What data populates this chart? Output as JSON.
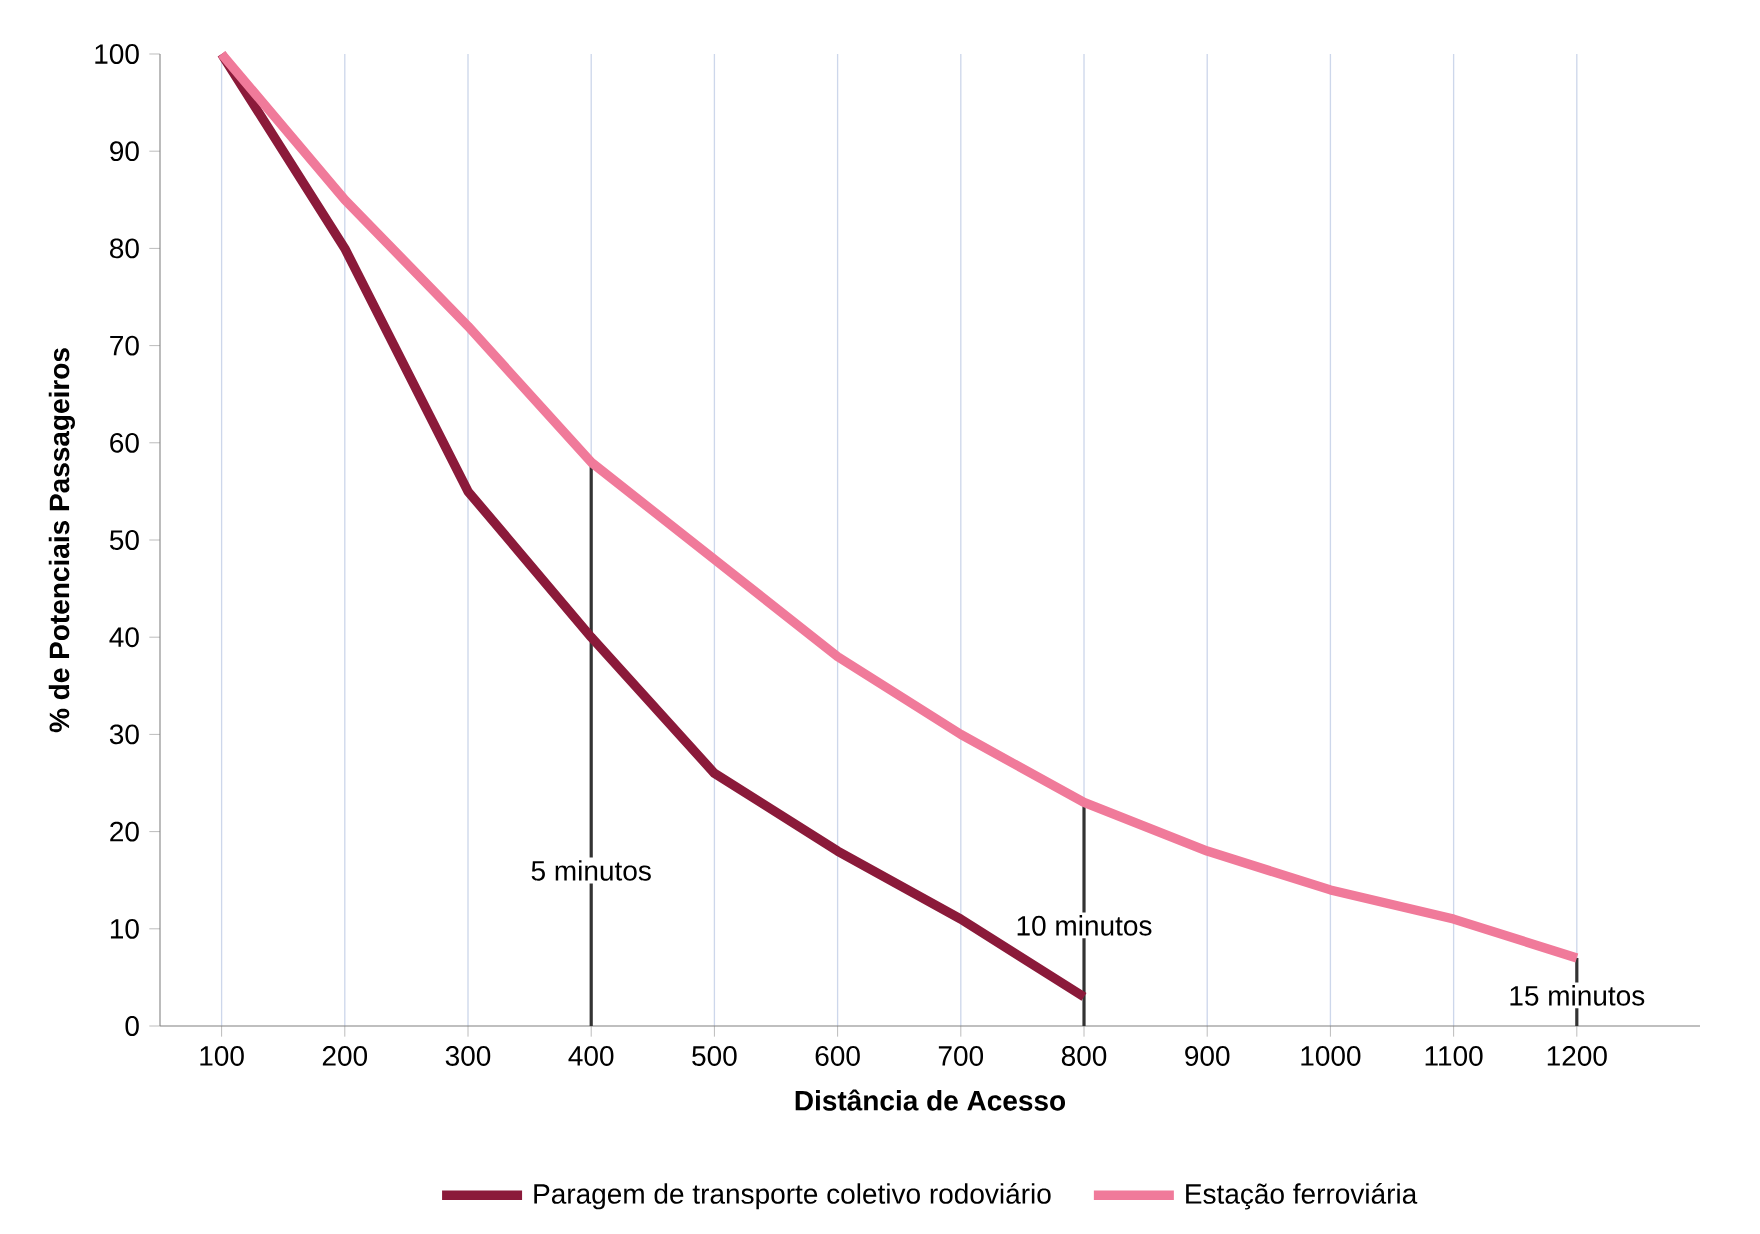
{
  "chart_data": {
    "type": "line",
    "xlabel": "Distância de Acesso",
    "ylabel": "% de Potenciais Passageiros",
    "x": [
      100,
      200,
      300,
      400,
      500,
      600,
      700,
      800,
      900,
      1000,
      1100,
      1200
    ],
    "series": [
      {
        "name": "Paragem de transporte coletivo rodoviário",
        "color": "#8b1a3a",
        "x": [
          100,
          200,
          300,
          400,
          500,
          600,
          700,
          800
        ],
        "values": [
          100,
          80,
          55,
          40,
          26,
          18,
          11,
          3
        ]
      },
      {
        "name": "Estação ferroviária",
        "color": "#f07a9a",
        "values": [
          100,
          85,
          72,
          58,
          48,
          38,
          30,
          23,
          18,
          14,
          11,
          7
        ]
      }
    ],
    "xlim": [
      50,
      1300
    ],
    "xticks": [
      100,
      200,
      300,
      400,
      500,
      600,
      700,
      800,
      900,
      1000,
      1100,
      1200
    ],
    "ylim": [
      0,
      100
    ],
    "yticks": [
      0,
      10,
      20,
      30,
      40,
      50,
      60,
      70,
      80,
      90,
      100
    ],
    "grid": "x",
    "legend": "bottom",
    "marker": "none",
    "line_style": "solid",
    "ref_lines": [
      {
        "axis": "x",
        "value": 400,
        "label": "5 minutos",
        "color": "#333333"
      },
      {
        "axis": "x",
        "value": 800,
        "label": "10 minutos",
        "color": "#333333"
      },
      {
        "axis": "x",
        "value": 1200,
        "label": "15 minutos",
        "color": "#333333"
      }
    ]
  }
}
